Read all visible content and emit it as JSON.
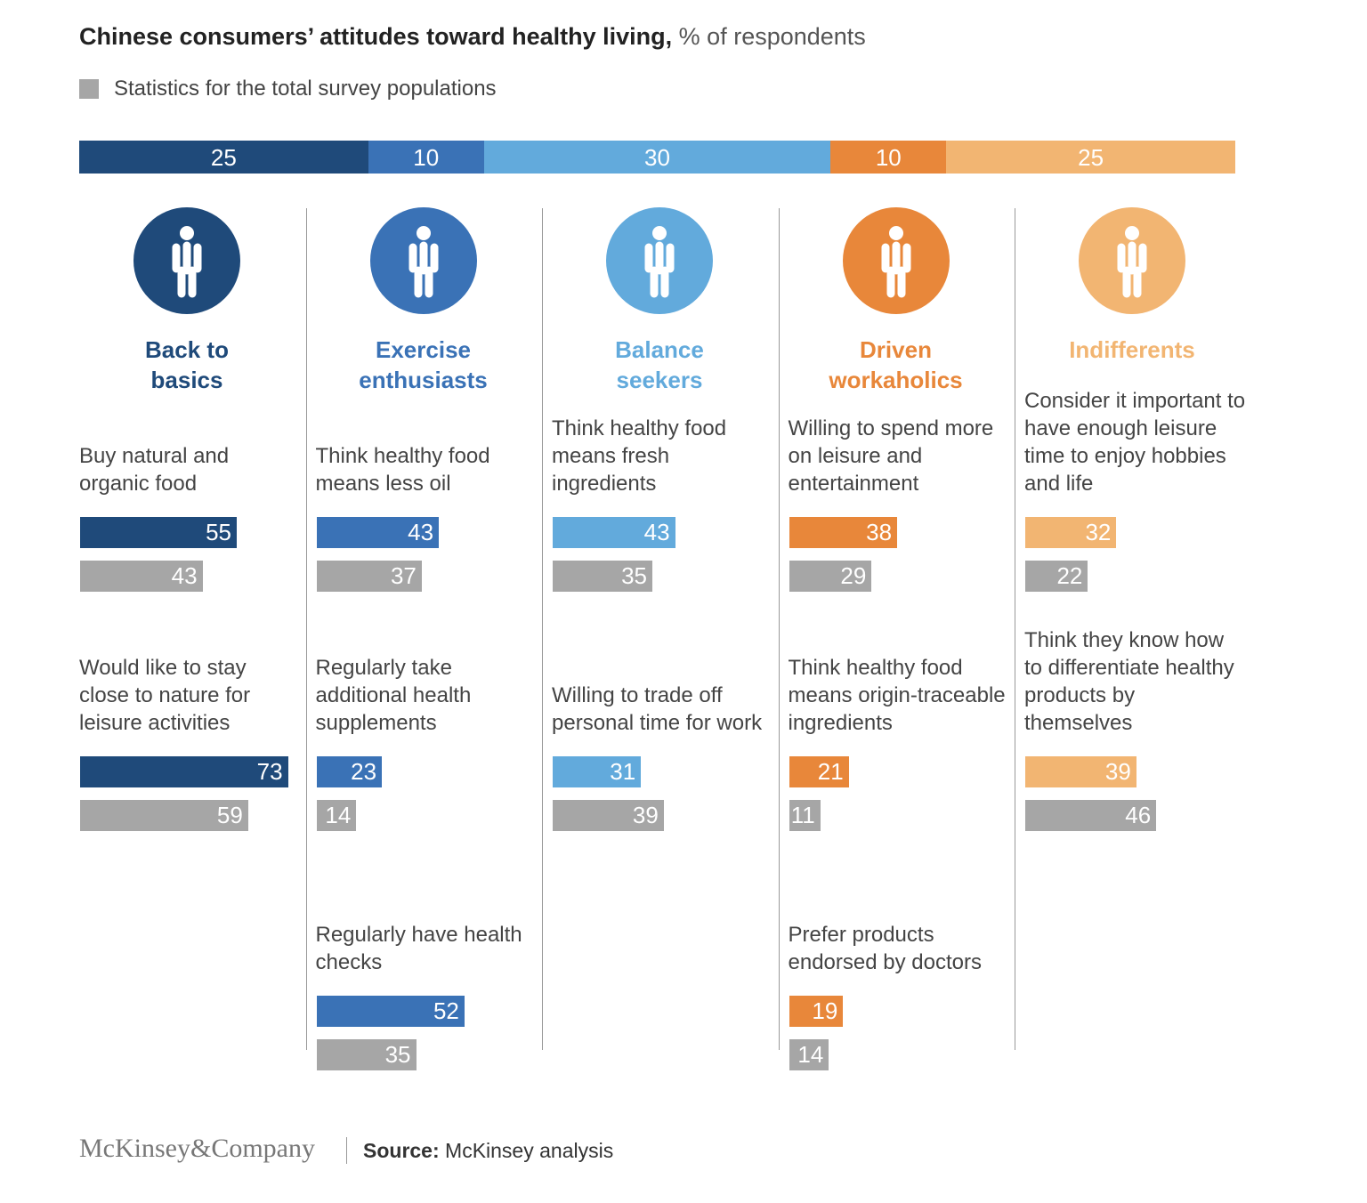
{
  "chart_data": {
    "type": "segment-profile",
    "title": "Chinese consumers’ attitudes toward healthy living,",
    "subtitle": "% of respondents",
    "legend_label": "Statistics for the total survey populations",
    "total_color": "#a6a6a6",
    "segments": [
      {
        "name": "Back to basics",
        "color": "#1f4a7a",
        "share": 25,
        "statements": [
          {
            "text": "Buy natural and organic food",
            "segment_value": 55,
            "total_value": 43
          },
          {
            "text": "Would like to stay close to nature for leisure activities",
            "segment_value": 73,
            "total_value": 59
          }
        ]
      },
      {
        "name": "Exercise enthusiasts",
        "color": "#3a72b6",
        "share": 10,
        "statements": [
          {
            "text": "Think healthy food means less oil",
            "segment_value": 43,
            "total_value": 37
          },
          {
            "text": "Regularly take additional health supplements",
            "segment_value": 23,
            "total_value": 14
          },
          {
            "text": "Regularly have health checks",
            "segment_value": 52,
            "total_value": 35
          }
        ]
      },
      {
        "name": "Balance seekers",
        "color": "#62aadc",
        "share": 30,
        "statements": [
          {
            "text": "Think healthy food means fresh ingredients",
            "segment_value": 43,
            "total_value": 35
          },
          {
            "text": "Willing to trade off personal time for work",
            "segment_value": 31,
            "total_value": 39
          }
        ]
      },
      {
        "name": "Driven workaholics",
        "color": "#e8873a",
        "share": 10,
        "statements": [
          {
            "text": "Willing to spend more on leisure and entertainment",
            "segment_value": 38,
            "total_value": 29
          },
          {
            "text": "Think healthy food means origin-traceable ingredients",
            "segment_value": 21,
            "total_value": 11
          },
          {
            "text": "Prefer products endorsed by doctors",
            "segment_value": 19,
            "total_value": 14
          }
        ]
      },
      {
        "name": "Indifferents",
        "color": "#f2b572",
        "share": 25,
        "statements": [
          {
            "text": "Consider it important to have enough leisure time to enjoy hobbies and life",
            "segment_value": 32,
            "total_value": 22
          },
          {
            "text": "Think they know how to differentiate healthy products by themselves",
            "segment_value": 39,
            "total_value": 46
          }
        ]
      }
    ]
  },
  "footer": {
    "brand": "McKinsey&Company",
    "source_label": "Source:",
    "source": "McKinsey analysis"
  }
}
